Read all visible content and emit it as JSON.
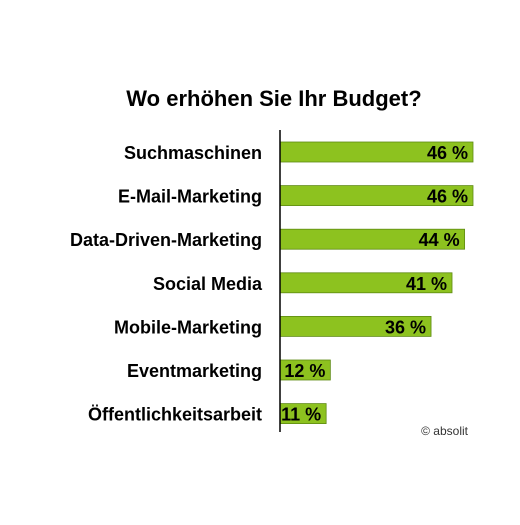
{
  "chart_data": {
    "type": "bar",
    "orientation": "horizontal",
    "title": "Wo erhöhen Sie Ihr Budget?",
    "categories": [
      "Suchmaschinen",
      "E-Mail-Marketing",
      "Data-Driven-Marketing",
      "Social Media",
      "Mobile-Marketing",
      "Eventmarketing",
      "Öffentlichkeitsarbeit"
    ],
    "values": [
      46,
      46,
      44,
      41,
      36,
      12,
      11
    ],
    "value_labels": [
      "46 %",
      "46 %",
      "44 %",
      "41 %",
      "36 %",
      "12 %",
      "11 %"
    ],
    "unit": "%",
    "xlim": [
      0,
      46
    ],
    "bar_color": "#8dc21f",
    "bar_edge_color": "#5e8a12",
    "axis_color": "#000000",
    "grid": false,
    "legend": "none"
  },
  "credit": "© absolit"
}
